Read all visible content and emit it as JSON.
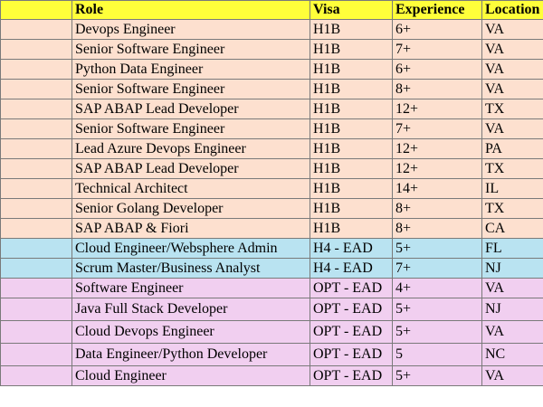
{
  "headers": [
    "",
    "Role",
    "Visa",
    "Experience",
    "Location"
  ],
  "colors": {
    "header": "#ffff3a",
    "h1b_group": "#fde0cf",
    "h4_group": "#b9e3f1",
    "opt_group": "#f1cff0"
  },
  "rows": [
    {
      "role": "Devops Engineer",
      "visa": "H1B",
      "experience": "6+",
      "location": "VA"
    },
    {
      "role": "Senior Software Engineer",
      "visa": "H1B",
      "experience": "7+",
      "location": "VA"
    },
    {
      "role": "Python Data Engineer",
      "visa": "H1B",
      "experience": "6+",
      "location": "VA"
    },
    {
      "role": "Senior Software Engineer",
      "visa": "H1B",
      "experience": "8+",
      "location": "VA"
    },
    {
      "role": "SAP ABAP Lead Developer",
      "visa": "H1B",
      "experience": "12+",
      "location": "TX"
    },
    {
      "role": "Senior Software Engineer",
      "visa": "H1B",
      "experience": "7+",
      "location": "VA"
    },
    {
      "role": "Lead Azure Devops Engineer",
      "visa": "H1B",
      "experience": "12+",
      "location": "PA"
    },
    {
      "role": "SAP ABAP Lead Developer",
      "visa": "H1B",
      "experience": "12+",
      "location": "TX"
    },
    {
      "role": "Technical Architect",
      "visa": "H1B",
      "experience": "14+",
      "location": "IL"
    },
    {
      "role": "Senior Golang Developer",
      "visa": "H1B",
      "experience": "8+",
      "location": "TX"
    },
    {
      "role": "SAP ABAP & Fiori",
      "visa": "H1B",
      "experience": "8+",
      "location": "CA"
    },
    {
      "role": "Cloud Engineer/Websphere Admin",
      "visa": "H4 - EAD",
      "experience": "5+",
      "location": "FL"
    },
    {
      "role": "Scrum Master/Business Analyst",
      "visa": "H4 - EAD",
      "experience": "7+",
      "location": "NJ"
    },
    {
      "role": "Software Engineer",
      "visa": "OPT - EAD",
      "experience": "4+",
      "location": "VA"
    },
    {
      "role": "Java Full Stack Developer",
      "visa": "OPT - EAD",
      "experience": "5+",
      "location": "NJ"
    },
    {
      "role": "Cloud Devops Engineer",
      "visa": "OPT - EAD",
      "experience": "5+",
      "location": "VA"
    },
    {
      "role": "Data Engineer/Python Developer",
      "visa": "OPT - EAD",
      "experience": "5",
      "location": "NC"
    },
    {
      "role": "Cloud Engineer",
      "visa": "OPT - EAD",
      "experience": "5+",
      "location": "VA"
    }
  ]
}
